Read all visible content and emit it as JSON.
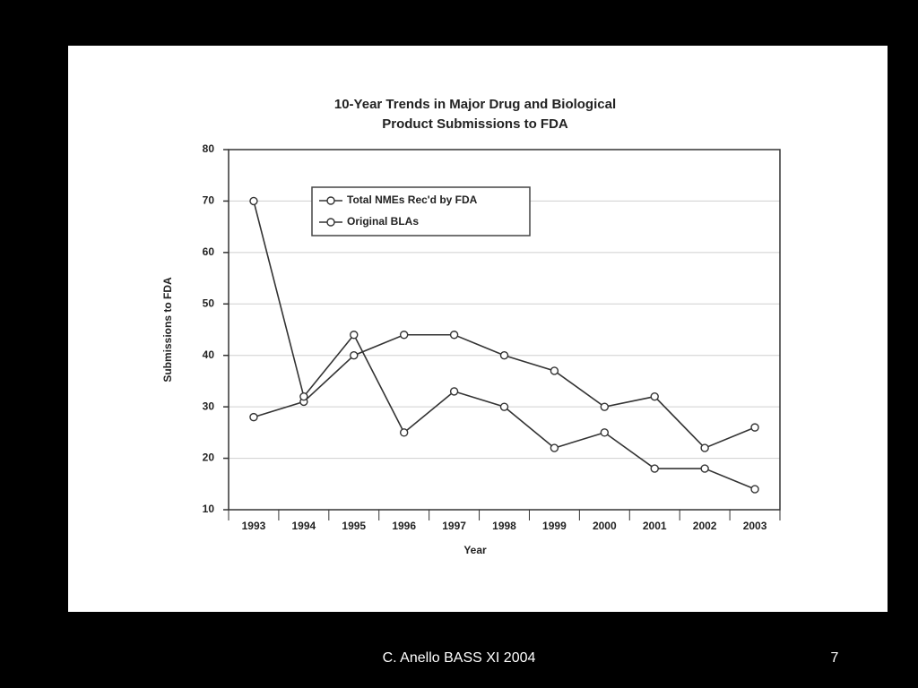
{
  "chart_data": {
    "type": "line",
    "title": [
      "10-Year Trends in Major Drug and Biological",
      "Product Submissions to FDA"
    ],
    "x_label": "Year",
    "y_label": "Submissions to FDA",
    "categories": [
      "1993",
      "1994",
      "1995",
      "1996",
      "1997",
      "1998",
      "1999",
      "2000",
      "2001",
      "2002",
      "2003"
    ],
    "series": [
      {
        "name": "Total NMEs Rec'd by FDA",
        "color": "#333333",
        "values": [
          28,
          31,
          40,
          44,
          44,
          40,
          37,
          30,
          32,
          22,
          26
        ]
      },
      {
        "name": "Original BLAs",
        "color": "#333333",
        "values": [
          70,
          32,
          44,
          25,
          33,
          30,
          22,
          25,
          18,
          18,
          14
        ]
      }
    ],
    "ylim": [
      10,
      80
    ],
    "yticks": [
      10,
      20,
      30,
      40,
      50,
      60,
      70,
      80
    ],
    "grid": true,
    "legend": "upper-left"
  },
  "footer": {
    "text": "C. Anello BASS XI 2004",
    "page": "7"
  }
}
